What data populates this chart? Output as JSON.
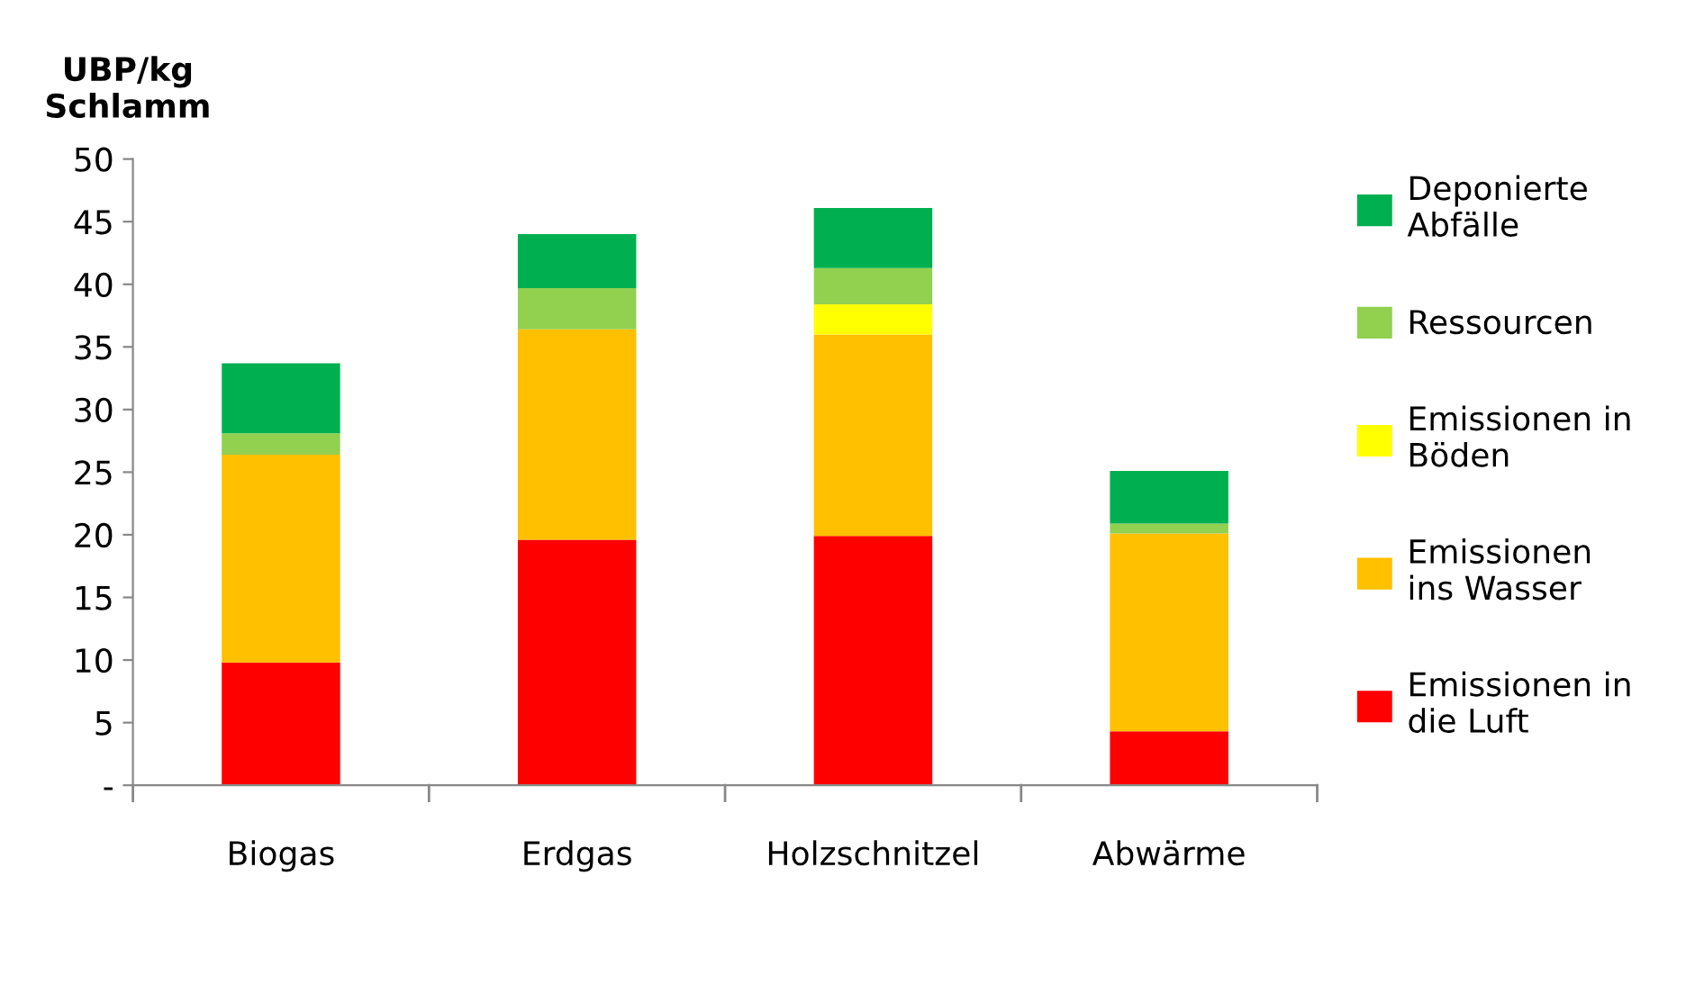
{
  "chart_data": {
    "type": "bar",
    "stacked": true,
    "ylabel": "UBP/kg\nSchlamm",
    "categories": [
      "Biogas",
      "Erdgas",
      "Holzschnitzel",
      "Abwärme"
    ],
    "series": [
      {
        "name": "Emissionen in\ndie Luft",
        "color": "#ff0000",
        "values": [
          9.8,
          19.6,
          19.9,
          4.3
        ]
      },
      {
        "name": "Emissionen\nins Wasser",
        "color": "#ffc000",
        "values": [
          16.6,
          16.8,
          16.1,
          15.8
        ]
      },
      {
        "name": "Emissionen in\nBöden",
        "color": "#ffff00",
        "values": [
          0,
          0,
          2.4,
          0
        ]
      },
      {
        "name": "Ressourcen",
        "color": "#92d050",
        "values": [
          1.7,
          3.3,
          2.9,
          0.8
        ]
      },
      {
        "name": "Deponierte\nAbfälle",
        "color": "#00b050",
        "values": [
          5.6,
          4.3,
          4.8,
          4.2
        ]
      }
    ],
    "ylim": [
      0,
      50
    ],
    "yticks": [
      {
        "value": 0,
        "label": "-"
      },
      5,
      10,
      15,
      20,
      25,
      30,
      35,
      40,
      45,
      50
    ],
    "grid": false,
    "legend": "right"
  }
}
